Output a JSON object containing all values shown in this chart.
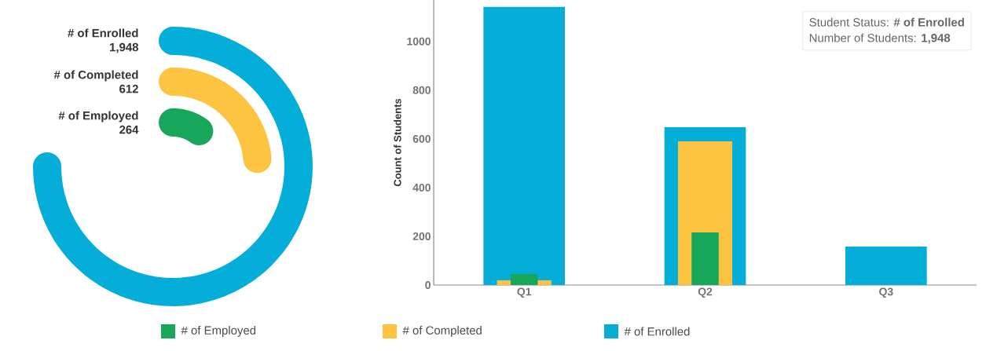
{
  "chart_data": [
    {
      "type": "other",
      "categories": [
        "# of Enrolled",
        "# of Completed",
        "# of Employed"
      ],
      "values": [
        1948,
        612,
        264
      ],
      "colors": [
        "#05aed8",
        "#fcc440",
        "#17a65a"
      ],
      "value_labels": [
        "1,948",
        "612",
        "264"
      ]
    },
    {
      "type": "bar",
      "categories": [
        "Q1",
        "Q2",
        "Q3"
      ],
      "ylabel": "Count of Students",
      "ylim": [
        0,
        1170
      ],
      "yticks": [
        0,
        200,
        400,
        600,
        800,
        1000
      ],
      "legend": "bottom",
      "annotations": [
        "Student Status: **# of Enrolled**",
        "Number of Students: **1,948**"
      ],
      "series": [
        {
          "name": "# of Employed",
          "color": "#17a65a",
          "values": [
            45,
            216,
            null
          ]
        },
        {
          "name": "# of Completed",
          "color": "#fcc440",
          "values": [
            19,
            590,
            null
          ]
        },
        {
          "name": "# of Enrolled",
          "color": "#05aed8",
          "values": [
            1142,
            648,
            158
          ]
        }
      ]
    }
  ]
}
